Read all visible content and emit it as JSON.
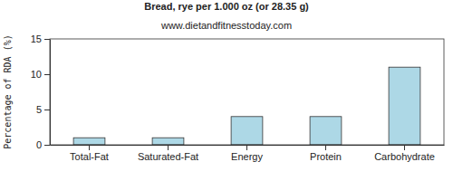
{
  "chart_data": {
    "type": "bar",
    "title": "Bread, rye per 1.000 oz (or 28.35 g)",
    "subtitle": "www.dietandfitnesstoday.com",
    "y_label": "Percentage of RDA (%)",
    "categories": [
      "Total-Fat",
      "Saturated-Fat",
      "Energy",
      "Protein",
      "Carbohydrate"
    ],
    "values": [
      1,
      1,
      4,
      4,
      11
    ],
    "color": "#add8e6",
    "ylim": [
      0,
      15
    ],
    "yticks": [
      0,
      5,
      10,
      15
    ],
    "grid": false
  }
}
